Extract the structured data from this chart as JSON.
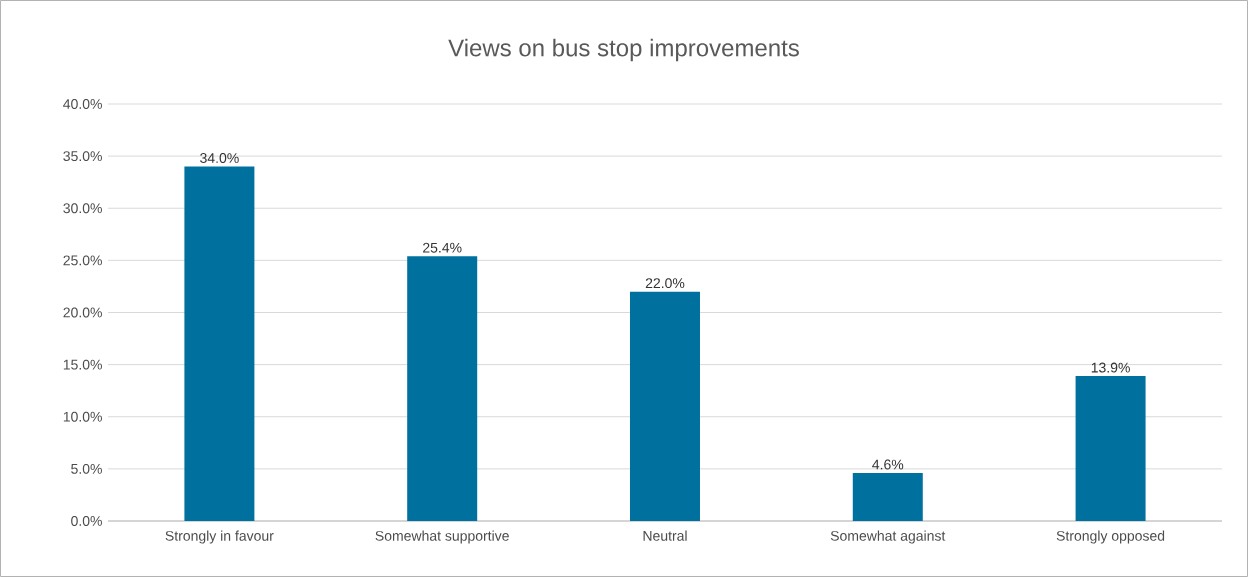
{
  "chart_data": {
    "type": "bar",
    "title": "Views on bus stop improvements",
    "categories": [
      "Strongly in favour",
      "Somewhat supportive",
      "Neutral",
      "Somewhat against",
      "Strongly opposed"
    ],
    "values": [
      34.0,
      25.4,
      22.0,
      4.6,
      13.9
    ],
    "value_labels": [
      "34.0%",
      "25.4%",
      "22.0%",
      "4.6%",
      "13.9%"
    ],
    "color": "#00709f",
    "ylim": [
      0,
      40
    ],
    "yticks": [
      {
        "value": 0,
        "label": "0.0%"
      },
      {
        "value": 5,
        "label": "5.0%"
      },
      {
        "value": 10,
        "label": "10.0%"
      },
      {
        "value": 15,
        "label": "15.0%"
      },
      {
        "value": 20,
        "label": "20.0%"
      },
      {
        "value": 25,
        "label": "25.0%"
      },
      {
        "value": 30,
        "label": "30.0%"
      },
      {
        "value": 35,
        "label": "35.0%"
      },
      {
        "value": 40,
        "label": "40.0%"
      }
    ],
    "grid": "y"
  }
}
